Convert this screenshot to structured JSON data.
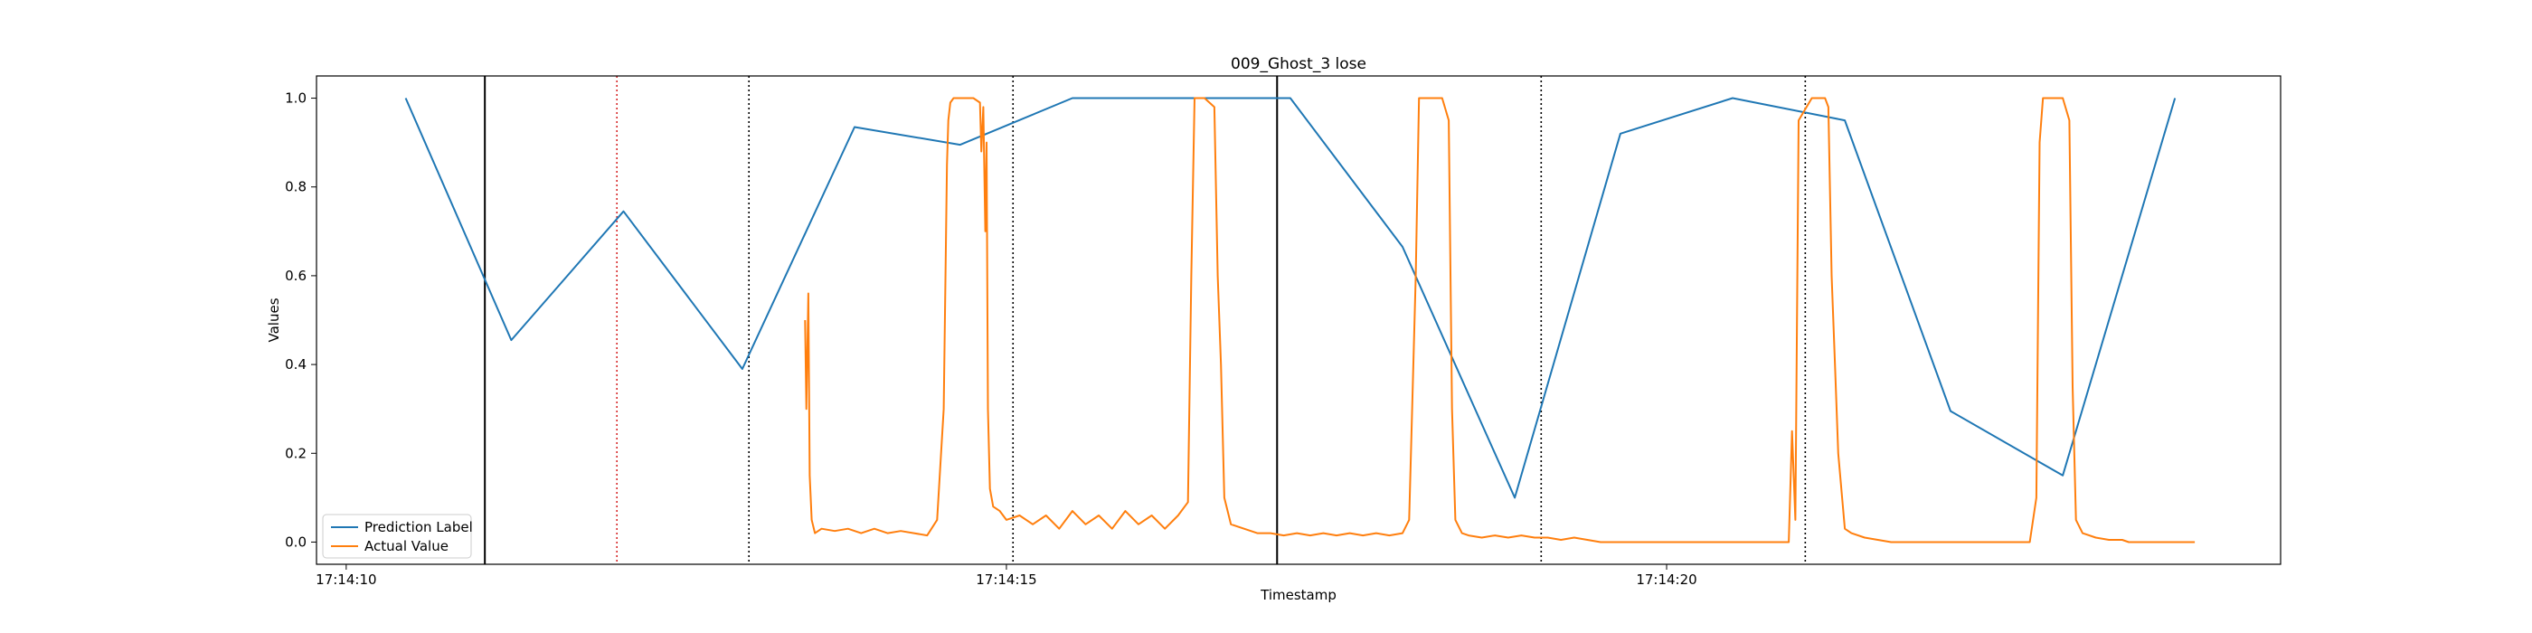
{
  "chart_data": {
    "type": "line",
    "title": "009_Ghost_3 lose",
    "xlabel": "Timestamp",
    "ylabel": "Values",
    "x_range": [
      -0.45,
      29.3
    ],
    "ylim": [
      -0.05,
      1.05
    ],
    "yticks": [
      0.0,
      0.2,
      0.4,
      0.6,
      0.8,
      1.0
    ],
    "ytick_labels": [
      "0.0",
      "0.2",
      "0.4",
      "0.6",
      "0.8",
      "1.0"
    ],
    "xticks": [
      0,
      10,
      20
    ],
    "xtick_labels": [
      "17:14:10",
      "17:14:15",
      "17:14:20"
    ],
    "grid": false,
    "legend_position": "lower-left",
    "colors": {
      "prediction": "#1f77b4",
      "actual": "#ff7f0e",
      "vline_black": "#000000",
      "vline_red": "#d62728"
    },
    "vertical_lines": [
      {
        "x": 2.1,
        "color": "black",
        "style": "solid"
      },
      {
        "x": 4.1,
        "color": "red",
        "style": "dotted"
      },
      {
        "x": 6.1,
        "color": "black",
        "style": "dotted"
      },
      {
        "x": 10.1,
        "color": "black",
        "style": "dotted"
      },
      {
        "x": 14.1,
        "color": "black",
        "style": "solid"
      },
      {
        "x": 18.1,
        "color": "black",
        "style": "dotted"
      },
      {
        "x": 22.1,
        "color": "black",
        "style": "dotted"
      }
    ],
    "series": [
      {
        "name": "Prediction Label",
        "x": [
          0.9,
          2.5,
          4.2,
          6.0,
          7.7,
          9.3,
          11.0,
          12.7,
          14.3,
          16.0,
          17.7,
          19.3,
          21.0,
          22.7,
          24.3,
          26.0,
          27.7
        ],
        "y": [
          1.0,
          0.455,
          0.745,
          0.39,
          0.935,
          0.895,
          1.0,
          1.0,
          1.0,
          0.665,
          0.1,
          0.92,
          1.0,
          0.95,
          0.295,
          0.15,
          1.0
        ]
      },
      {
        "name": "Actual Value",
        "x": [
          6.95,
          6.97,
          7.0,
          7.02,
          7.05,
          7.1,
          7.2,
          7.4,
          7.6,
          7.8,
          8.0,
          8.2,
          8.4,
          8.6,
          8.8,
          8.95,
          9.05,
          9.1,
          9.12,
          9.15,
          9.2,
          9.3,
          9.5,
          9.6,
          9.62,
          9.65,
          9.68,
          9.7,
          9.72,
          9.75,
          9.8,
          9.9,
          10.0,
          10.2,
          10.4,
          10.6,
          10.8,
          11.0,
          11.2,
          11.4,
          11.6,
          11.8,
          12.0,
          12.2,
          12.4,
          12.6,
          12.75,
          12.8,
          12.85,
          13.0,
          13.15,
          13.2,
          13.25,
          13.3,
          13.4,
          13.6,
          13.8,
          14.0,
          14.2,
          14.4,
          14.6,
          14.8,
          15.0,
          15.2,
          15.4,
          15.6,
          15.8,
          16.0,
          16.1,
          16.2,
          16.25,
          16.3,
          16.4,
          16.6,
          16.7,
          16.75,
          16.8,
          16.9,
          17.0,
          17.2,
          17.4,
          17.6,
          17.8,
          18.0,
          18.2,
          18.4,
          18.6,
          18.8,
          19.0,
          19.2,
          19.4,
          19.6,
          19.8,
          20.0,
          20.2,
          20.4,
          20.6,
          20.8,
          21.0,
          21.2,
          21.4,
          21.6,
          21.8,
          21.85,
          21.9,
          21.95,
          22.0,
          22.2,
          22.4,
          22.45,
          22.5,
          22.55,
          22.6,
          22.7,
          22.8,
          23.0,
          23.2,
          23.4,
          23.6,
          23.8,
          24.0,
          24.2,
          24.4,
          24.6,
          24.8,
          25.0,
          25.2,
          25.5,
          25.6,
          25.65,
          25.7,
          25.8,
          26.0,
          26.1,
          26.15,
          26.2,
          26.3,
          26.5,
          26.7,
          26.9,
          27.0,
          27.2,
          27.5,
          28.0
        ],
        "y": [
          0.5,
          0.3,
          0.56,
          0.15,
          0.05,
          0.02,
          0.03,
          0.025,
          0.03,
          0.02,
          0.03,
          0.02,
          0.025,
          0.02,
          0.015,
          0.05,
          0.3,
          0.85,
          0.95,
          0.99,
          1.0,
          1.0,
          1.0,
          0.99,
          0.88,
          0.98,
          0.7,
          0.9,
          0.3,
          0.12,
          0.08,
          0.07,
          0.05,
          0.06,
          0.04,
          0.06,
          0.03,
          0.07,
          0.04,
          0.06,
          0.03,
          0.07,
          0.04,
          0.06,
          0.03,
          0.06,
          0.09,
          0.6,
          1.0,
          1.0,
          0.98,
          0.6,
          0.4,
          0.1,
          0.04,
          0.03,
          0.02,
          0.02,
          0.015,
          0.02,
          0.015,
          0.02,
          0.015,
          0.02,
          0.015,
          0.02,
          0.015,
          0.02,
          0.05,
          0.6,
          1.0,
          1.0,
          1.0,
          1.0,
          0.95,
          0.3,
          0.05,
          0.02,
          0.015,
          0.01,
          0.015,
          0.01,
          0.015,
          0.01,
          0.01,
          0.005,
          0.01,
          0.005,
          0.0,
          0.0,
          0.0,
          0.0,
          0.0,
          0.0,
          0.0,
          0.0,
          0.0,
          0.0,
          0.0,
          0.0,
          0.0,
          0.0,
          0.0,
          0.0,
          0.25,
          0.05,
          0.95,
          1.0,
          1.0,
          0.98,
          0.6,
          0.4,
          0.2,
          0.03,
          0.02,
          0.01,
          0.005,
          0.0,
          0.0,
          0.0,
          0.0,
          0.0,
          0.0,
          0.0,
          0.0,
          0.0,
          0.0,
          0.0,
          0.1,
          0.9,
          1.0,
          1.0,
          1.0,
          0.95,
          0.35,
          0.05,
          0.02,
          0.01,
          0.005,
          0.005,
          0.0,
          0.0,
          0.0,
          0.0
        ]
      }
    ]
  }
}
